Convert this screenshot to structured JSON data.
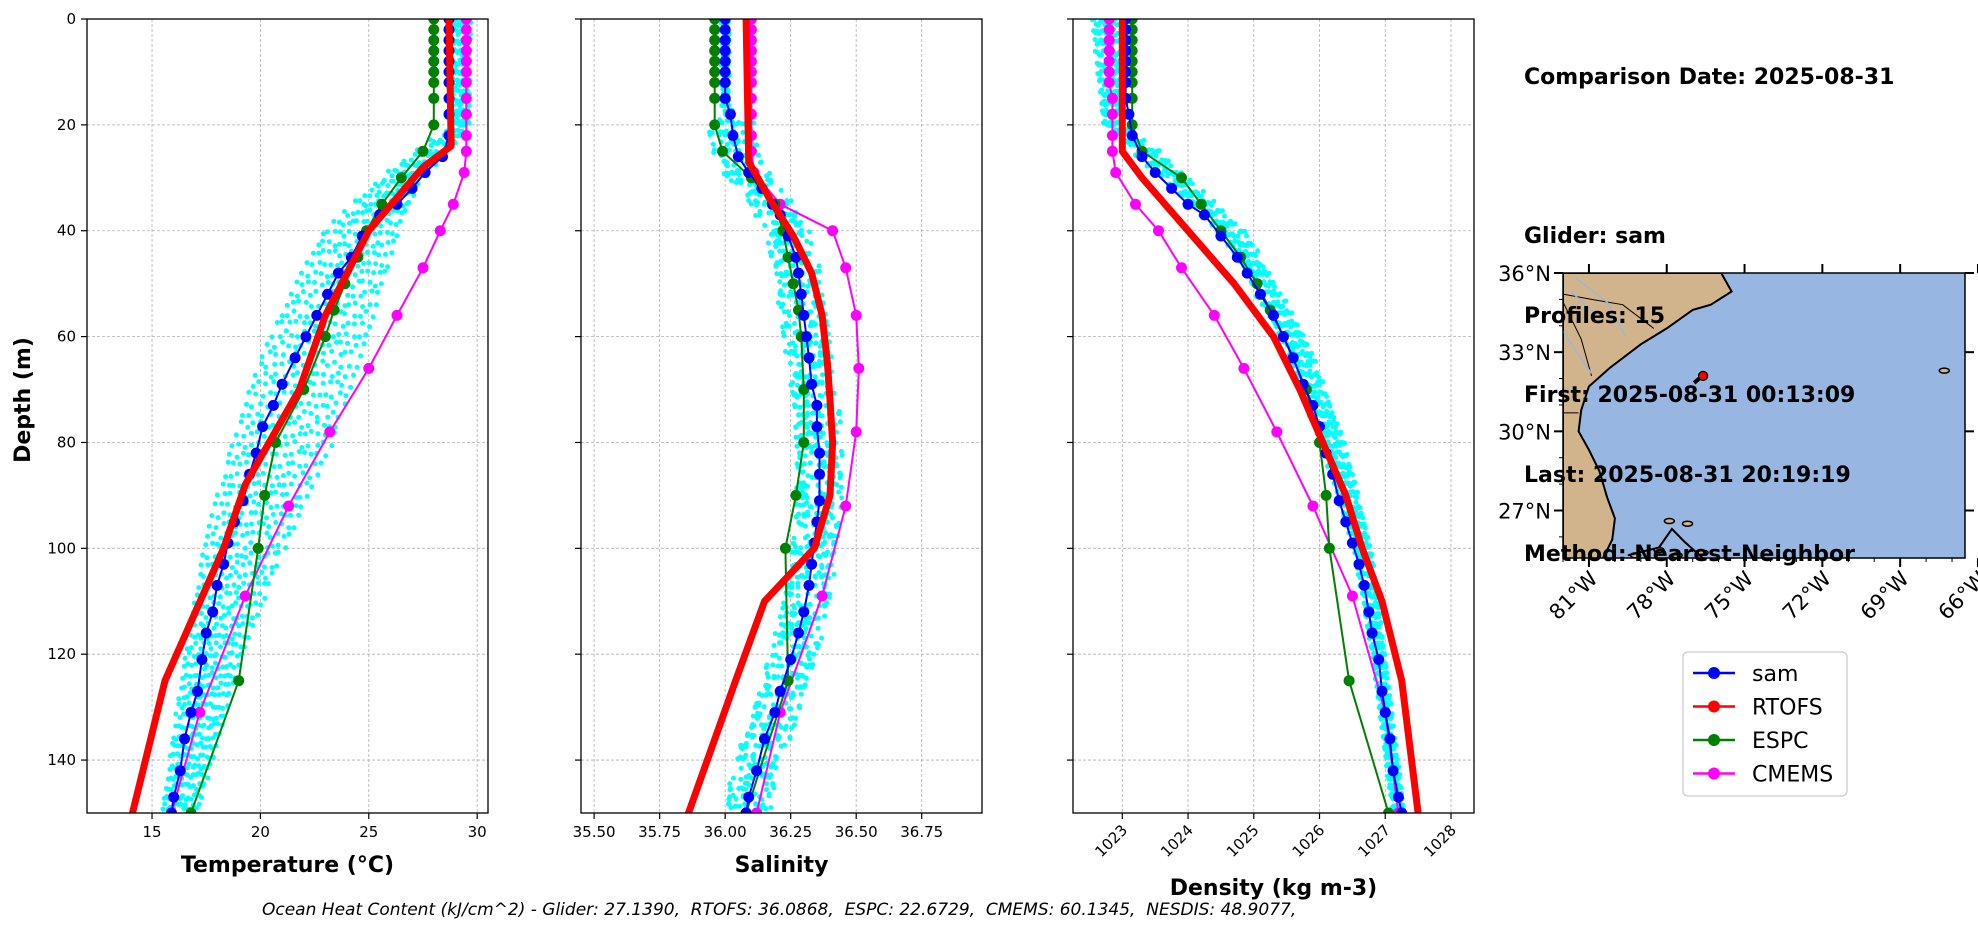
{
  "info": {
    "comparison_date": "Comparison Date: 2025-08-31",
    "glider": "Glider: sam",
    "profiles": "Profiles: 15",
    "first": "First: 2025-08-31 00:13:09",
    "last": "Last: 2025-08-31 20:19:19",
    "method": "Method: Nearest-Neighbor"
  },
  "footer": "Ocean Heat Content (kJ/cm^2) - Glider: 27.1390,  RTOFS: 36.0868,  ESPC: 22.6729,  CMEMS: 60.1345,  NESDIS: 48.9077,",
  "colors": {
    "sam": "#0000ff",
    "rtofs": "#ff0000",
    "espc": "#008000",
    "cmems": "#ff00ff",
    "glider_points": "#00ffff",
    "grid": "#b0b0b0",
    "ocean": "#97b6e1",
    "land": "#d2b48c"
  },
  "legend": [
    "sam",
    "RTOFS",
    "ESPC",
    "CMEMS"
  ],
  "map": {
    "lat_ticks": [
      "36°N",
      "33°N",
      "30°N",
      "27°N"
    ],
    "lon_ticks": [
      "81°W",
      "78°W",
      "75°W",
      "72°W",
      "69°W",
      "66°W"
    ],
    "lon_range": [
      -82.0,
      -66.5
    ],
    "lat_range": [
      25.2,
      36.0
    ],
    "glider_position": {
      "lon": -76.6,
      "lat": 32.1
    }
  },
  "chart_data": [
    {
      "type": "line",
      "xlabel": "Temperature (°C)",
      "ylabel": "Depth (m)",
      "xlim": [
        12,
        30.5
      ],
      "ylim": [
        150,
        0
      ],
      "x_ticks": [
        15,
        20,
        25,
        30
      ],
      "y_ticks": [
        0,
        20,
        40,
        60,
        80,
        100,
        120,
        140
      ],
      "depths": [
        0,
        2,
        4,
        6,
        8,
        10,
        12,
        15,
        18,
        22,
        26,
        29,
        32,
        35,
        37,
        41,
        45,
        48,
        52,
        56,
        60,
        64,
        69,
        73,
        77,
        82,
        86,
        91,
        95,
        99,
        103,
        107,
        112,
        116,
        121,
        127,
        131,
        136,
        142,
        147,
        150
      ],
      "series": [
        {
          "name": "sam",
          "values": [
            28.7,
            28.7,
            28.7,
            28.7,
            28.7,
            28.7,
            28.7,
            28.7,
            28.7,
            28.7,
            28.4,
            27.6,
            27.0,
            26.3,
            25.5,
            24.7,
            24.2,
            23.6,
            23.1,
            22.6,
            22.1,
            21.6,
            21.0,
            20.6,
            20.1,
            19.8,
            19.5,
            19.2,
            18.8,
            18.5,
            18.3,
            18.0,
            17.8,
            17.5,
            17.3,
            17.1,
            16.8,
            16.5,
            16.3,
            16.0,
            15.9
          ]
        },
        {
          "name": "RTOFS",
          "depths": [
            0,
            24,
            28,
            40,
            56,
            70,
            80,
            88,
            100,
            112,
            125,
            150
          ],
          "values": [
            28.7,
            28.8,
            27.5,
            25.0,
            23.0,
            21.8,
            20.4,
            19.3,
            18.3,
            17.0,
            15.6,
            14.1
          ]
        },
        {
          "name": "ESPC",
          "depths": [
            0,
            2,
            4,
            6,
            8,
            10,
            12,
            15,
            20,
            25,
            30,
            35,
            40,
            45,
            50,
            55,
            60,
            70,
            80,
            90,
            100,
            125,
            150
          ],
          "values": [
            28.0,
            28.0,
            28.0,
            28.0,
            28.0,
            28.0,
            28.0,
            28.0,
            28.0,
            27.5,
            26.5,
            25.6,
            24.9,
            24.5,
            23.9,
            23.4,
            23.0,
            22.0,
            20.7,
            20.2,
            19.9,
            19.0,
            16.8
          ]
        },
        {
          "name": "CMEMS",
          "depths": [
            0,
            2,
            4,
            6,
            8,
            10,
            12,
            15,
            18,
            22,
            25,
            29,
            35,
            40,
            47,
            56,
            66,
            78,
            92,
            109,
            131,
            150
          ],
          "values": [
            29.5,
            29.5,
            29.5,
            29.5,
            29.5,
            29.5,
            29.5,
            29.5,
            29.5,
            29.5,
            29.5,
            29.4,
            28.9,
            28.3,
            27.5,
            26.3,
            25.0,
            23.2,
            21.3,
            19.3,
            17.2,
            15.9
          ]
        }
      ],
      "scatter_band": {
        "warm_edge": [
          [
            0,
            29.8
          ],
          [
            20,
            29.7
          ],
          [
            25,
            28.6
          ],
          [
            30,
            27.5
          ],
          [
            40,
            26.6
          ],
          [
            60,
            25.2
          ],
          [
            80,
            23.6
          ],
          [
            100,
            21.3
          ],
          [
            120,
            19.3
          ],
          [
            150,
            17.2
          ]
        ],
        "cool_edge": [
          [
            0,
            28.6
          ],
          [
            20,
            28.8
          ],
          [
            25,
            27.0
          ],
          [
            30,
            25.4
          ],
          [
            40,
            22.8
          ],
          [
            60,
            20.3
          ],
          [
            80,
            18.6
          ],
          [
            100,
            17.3
          ],
          [
            120,
            16.5
          ],
          [
            150,
            15.4
          ]
        ]
      }
    },
    {
      "type": "line",
      "xlabel": "Salinity",
      "xlim": [
        35.45,
        36.98
      ],
      "ylim": [
        150,
        0
      ],
      "x_ticks": [
        35.5,
        35.75,
        36.0,
        36.25,
        36.5,
        36.75
      ],
      "x_tick_labels": [
        "35.50",
        "35.75",
        "36.00",
        "36.25",
        "36.50",
        "36.75"
      ],
      "series": [
        {
          "name": "sam",
          "depths": [
            0,
            2,
            4,
            6,
            8,
            10,
            12,
            15,
            18,
            22,
            26,
            29,
            32,
            35,
            37,
            41,
            45,
            48,
            52,
            56,
            60,
            64,
            69,
            73,
            77,
            82,
            86,
            91,
            95,
            99,
            103,
            107,
            112,
            116,
            121,
            127,
            131,
            136,
            142,
            147,
            150
          ],
          "values": [
            36.0,
            36.0,
            36.0,
            36.0,
            36.0,
            36.0,
            36.0,
            36.0,
            36.02,
            36.03,
            36.05,
            36.09,
            36.14,
            36.18,
            36.21,
            36.24,
            36.27,
            36.28,
            36.29,
            36.3,
            36.31,
            36.32,
            36.33,
            36.35,
            36.35,
            36.36,
            36.36,
            36.36,
            36.35,
            36.34,
            36.33,
            36.32,
            36.3,
            36.28,
            36.25,
            36.21,
            36.19,
            36.15,
            36.12,
            36.09,
            36.08
          ]
        },
        {
          "name": "RTOFS",
          "depths": [
            0,
            27,
            34,
            41,
            48,
            56,
            65,
            72,
            80,
            90,
            100,
            110,
            125,
            150
          ],
          "values": [
            36.08,
            36.09,
            36.17,
            36.26,
            36.33,
            36.37,
            36.39,
            36.4,
            36.41,
            36.4,
            36.34,
            36.15,
            36.04,
            35.86
          ]
        },
        {
          "name": "ESPC",
          "depths": [
            0,
            2,
            4,
            6,
            8,
            10,
            12,
            15,
            20,
            25,
            30,
            35,
            40,
            45,
            50,
            55,
            60,
            70,
            80,
            90,
            100,
            125,
            150
          ],
          "values": [
            35.96,
            35.96,
            35.96,
            35.96,
            35.96,
            35.96,
            35.96,
            35.96,
            35.96,
            35.99,
            36.1,
            36.19,
            36.22,
            36.24,
            36.26,
            36.28,
            36.29,
            36.3,
            36.3,
            36.27,
            36.23,
            36.24,
            36.08
          ]
        },
        {
          "name": "CMEMS",
          "depths": [
            0,
            2,
            4,
            6,
            8,
            10,
            12,
            15,
            18,
            22,
            25,
            29,
            35,
            40,
            47,
            56,
            66,
            78,
            92,
            109,
            131,
            150
          ],
          "values": [
            36.1,
            36.1,
            36.1,
            36.1,
            36.1,
            36.1,
            36.1,
            36.1,
            36.1,
            36.1,
            36.1,
            36.11,
            36.21,
            36.41,
            36.46,
            36.5,
            36.51,
            36.5,
            36.46,
            36.37,
            36.21,
            36.12
          ]
        }
      ]
    },
    {
      "type": "line",
      "xlabel": "Density (kg m-3)",
      "xlim": [
        1022.25,
        1028.35
      ],
      "ylim": [
        150,
        0
      ],
      "x_ticks": [
        1023,
        1024,
        1025,
        1026,
        1027,
        1028
      ],
      "series": [
        {
          "name": "sam",
          "depths": [
            0,
            2,
            4,
            6,
            8,
            10,
            12,
            15,
            18,
            22,
            26,
            29,
            32,
            35,
            37,
            41,
            45,
            48,
            52,
            56,
            60,
            64,
            69,
            73,
            77,
            82,
            86,
            91,
            95,
            99,
            103,
            107,
            112,
            116,
            121,
            127,
            131,
            136,
            142,
            147,
            150
          ],
          "values": [
            1023.05,
            1023.05,
            1023.05,
            1023.05,
            1023.05,
            1023.05,
            1023.05,
            1023.05,
            1023.1,
            1023.15,
            1023.3,
            1023.5,
            1023.75,
            1024.0,
            1024.25,
            1024.5,
            1024.75,
            1024.9,
            1025.1,
            1025.3,
            1025.45,
            1025.6,
            1025.75,
            1025.9,
            1026.0,
            1026.1,
            1026.2,
            1026.3,
            1026.4,
            1026.5,
            1026.6,
            1026.68,
            1026.75,
            1026.8,
            1026.9,
            1026.95,
            1027.0,
            1027.07,
            1027.12,
            1027.2,
            1027.25
          ]
        },
        {
          "name": "RTOFS",
          "depths": [
            0,
            25,
            30,
            40,
            50,
            60,
            70,
            80,
            90,
            100,
            110,
            125,
            150
          ],
          "values": [
            1023.0,
            1023.0,
            1023.3,
            1024.0,
            1024.7,
            1025.3,
            1025.7,
            1026.05,
            1026.4,
            1026.65,
            1026.95,
            1027.25,
            1027.5
          ]
        },
        {
          "name": "ESPC",
          "depths": [
            0,
            2,
            4,
            6,
            8,
            10,
            12,
            15,
            20,
            25,
            30,
            35,
            40,
            45,
            50,
            55,
            60,
            70,
            80,
            90,
            100,
            125,
            150
          ],
          "values": [
            1023.15,
            1023.15,
            1023.15,
            1023.15,
            1023.15,
            1023.15,
            1023.15,
            1023.15,
            1023.15,
            1023.3,
            1023.9,
            1024.2,
            1024.5,
            1024.8,
            1025.05,
            1025.25,
            1025.45,
            1025.8,
            1026.0,
            1026.1,
            1026.15,
            1026.45,
            1027.05
          ]
        },
        {
          "name": "CMEMS",
          "depths": [
            0,
            2,
            4,
            6,
            8,
            10,
            12,
            15,
            18,
            22,
            25,
            29,
            35,
            40,
            47,
            56,
            66,
            78,
            92,
            109,
            131,
            150
          ],
          "values": [
            1022.8,
            1022.8,
            1022.8,
            1022.8,
            1022.8,
            1022.8,
            1022.8,
            1022.85,
            1022.85,
            1022.85,
            1022.85,
            1022.9,
            1023.2,
            1023.55,
            1023.9,
            1024.4,
            1024.85,
            1025.35,
            1025.9,
            1026.5,
            1027.0,
            1027.2
          ]
        }
      ],
      "scatter_band": {
        "warm_edge": [
          [
            0,
            1022.5
          ],
          [
            20,
            1022.7
          ],
          [
            25,
            1023.2
          ],
          [
            40,
            1024.5
          ],
          [
            60,
            1025.4
          ],
          [
            80,
            1026.0
          ],
          [
            100,
            1026.5
          ],
          [
            120,
            1026.8
          ],
          [
            150,
            1027.1
          ]
        ],
        "cool_edge": [
          [
            0,
            1023.0
          ],
          [
            20,
            1023.0
          ],
          [
            25,
            1023.6
          ],
          [
            40,
            1024.9
          ],
          [
            60,
            1025.8
          ],
          [
            80,
            1026.4
          ],
          [
            100,
            1026.8
          ],
          [
            120,
            1027.0
          ],
          [
            150,
            1027.3
          ]
        ]
      }
    }
  ]
}
